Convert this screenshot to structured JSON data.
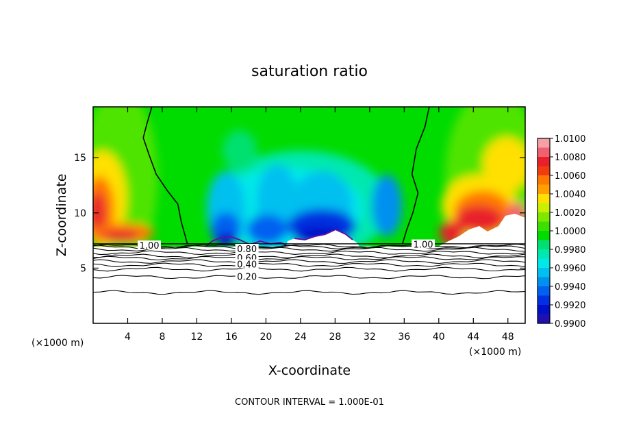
{
  "chart_data": {
    "type": "heatmap",
    "title": "saturation ratio",
    "xlabel": "X-coordinate",
    "ylabel": "Z-coordinate",
    "x_unit": "(×1000 m)",
    "x_unit_right": "(×1000 m)",
    "xlim": [
      0,
      50
    ],
    "ylim": [
      0,
      19.6
    ],
    "x_ticks": [
      4,
      8,
      12,
      16,
      20,
      24,
      28,
      32,
      36,
      40,
      44,
      48
    ],
    "y_ticks": [
      5,
      10,
      15
    ],
    "footnote": "CONTOUR INTERVAL = 1.000E-01",
    "colorbar": {
      "ticks": [
        "1.0100",
        "1.0080",
        "1.0060",
        "1.0040",
        "1.0020",
        "1.0000",
        "0.9980",
        "0.9960",
        "0.9940",
        "0.9920",
        "0.9900"
      ],
      "stops": [
        {
          "v": 1.01,
          "c": "#f4a0a8"
        },
        {
          "v": 1.009,
          "c": "#f06070"
        },
        {
          "v": 1.008,
          "c": "#e8202a"
        },
        {
          "v": 1.007,
          "c": "#f03c10"
        },
        {
          "v": 1.006,
          "c": "#ff7800"
        },
        {
          "v": 1.005,
          "c": "#ffa000"
        },
        {
          "v": 1.004,
          "c": "#ffe000"
        },
        {
          "v": 1.003,
          "c": "#c8f000"
        },
        {
          "v": 1.002,
          "c": "#80e800"
        },
        {
          "v": 1.001,
          "c": "#3ce000"
        },
        {
          "v": 1.0,
          "c": "#00dc00"
        },
        {
          "v": 0.999,
          "c": "#00e070"
        },
        {
          "v": 0.998,
          "c": "#00e8b0"
        },
        {
          "v": 0.997,
          "c": "#00e8e8"
        },
        {
          "v": 0.996,
          "c": "#00c0f0"
        },
        {
          "v": 0.995,
          "c": "#0090f0"
        },
        {
          "v": 0.994,
          "c": "#0060f0"
        },
        {
          "v": 0.993,
          "c": "#0030e0"
        },
        {
          "v": 0.992,
          "c": "#0010c8"
        },
        {
          "v": 0.991,
          "c": "#2010b0"
        },
        {
          "v": 0.99,
          "c": "#6010a0"
        }
      ]
    },
    "cloud_base_z": 7.2,
    "contour_labels": [
      {
        "text": "1.00",
        "x": 6.5,
        "z": 7.0
      },
      {
        "text": "0.80",
        "x": 17.8,
        "z": 6.7
      },
      {
        "text": "0.60",
        "x": 17.8,
        "z": 5.9
      },
      {
        "text": "0.40",
        "x": 17.8,
        "z": 5.3
      },
      {
        "text": "0.20",
        "x": 17.8,
        "z": 4.2
      },
      {
        "text": "1.00",
        "x": 38.2,
        "z": 7.1
      }
    ],
    "contour_levels_below": [
      7.0,
      6.9,
      6.7,
      6.4,
      6.1,
      5.9,
      5.6,
      5.3,
      4.9,
      4.2,
      2.8
    ],
    "one_contour_left": [
      [
        6.8,
        19.6
      ],
      [
        6.2,
        18.0
      ],
      [
        5.8,
        16.8
      ],
      [
        6.5,
        15.2
      ],
      [
        7.3,
        13.5
      ],
      [
        8.6,
        12.0
      ],
      [
        9.8,
        10.8
      ],
      [
        10.2,
        9.2
      ],
      [
        10.9,
        7.2
      ]
    ],
    "one_contour_right": [
      [
        38.9,
        19.6
      ],
      [
        38.4,
        17.8
      ],
      [
        37.4,
        15.8
      ],
      [
        36.9,
        13.5
      ],
      [
        37.6,
        11.8
      ],
      [
        37.0,
        10.0
      ],
      [
        36.3,
        8.5
      ],
      [
        35.8,
        7.2
      ]
    ]
  }
}
